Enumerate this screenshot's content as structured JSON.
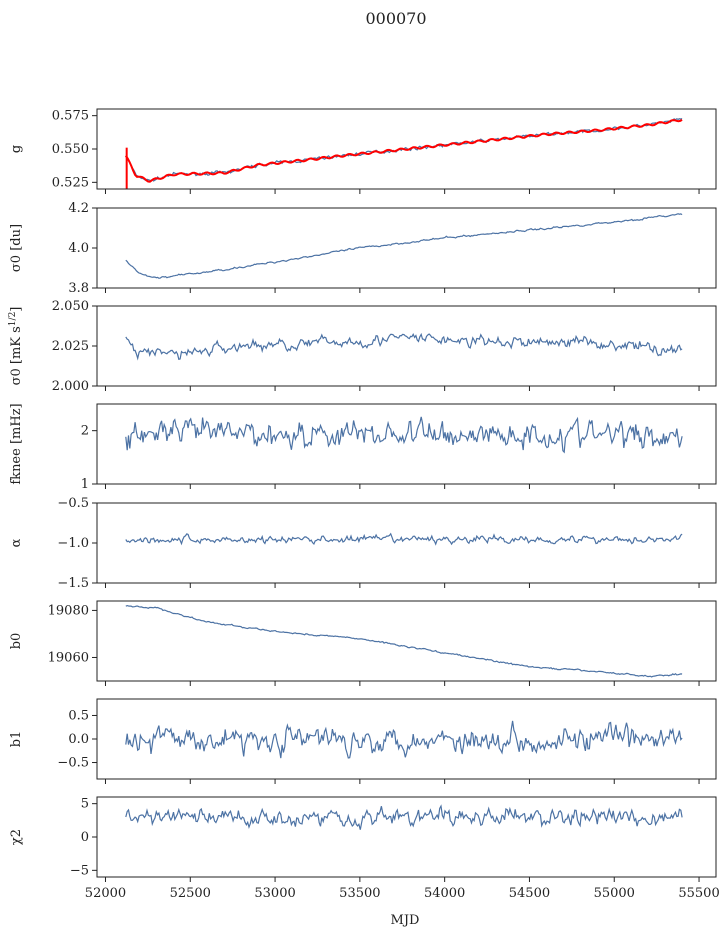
{
  "figure": {
    "title": "000070",
    "xlabel": "MJD"
  },
  "chart_data": {
    "type": "line",
    "xlim": [
      51950,
      55600
    ],
    "xticks": [
      52000,
      52500,
      53000,
      53500,
      54000,
      54500,
      55000,
      55500
    ],
    "x_start": 52120,
    "x_end": 55400,
    "series_color": "#4c72a4",
    "fit_color": "#ff0000",
    "panels": [
      {
        "name": "g",
        "ylabel": "g",
        "ylim": [
          0.52,
          0.58
        ],
        "yticks": [
          0.525,
          0.55,
          0.575
        ],
        "ytick_labels": [
          "0.525",
          "0.550",
          "0.575"
        ],
        "trend": [
          [
            52120,
            0.545
          ],
          [
            52180,
            0.53
          ],
          [
            52260,
            0.526
          ],
          [
            52400,
            0.531
          ],
          [
            52700,
            0.532
          ],
          [
            52900,
            0.538
          ],
          [
            53200,
            0.542
          ],
          [
            53400,
            0.545
          ],
          [
            53700,
            0.549
          ],
          [
            54000,
            0.553
          ],
          [
            54300,
            0.557
          ],
          [
            54600,
            0.561
          ],
          [
            54900,
            0.564
          ],
          [
            55200,
            0.568
          ],
          [
            55400,
            0.572
          ]
        ],
        "noise": 0.001,
        "overlay_fit": true
      },
      {
        "name": "sigma0-du",
        "ylabel": "σ0 [du]",
        "ylim": [
          3.8,
          4.2
        ],
        "yticks": [
          3.8,
          4.0,
          4.2
        ],
        "ytick_labels": [
          "3.8",
          "4.0",
          "4.2"
        ],
        "trend": [
          [
            52120,
            3.94
          ],
          [
            52200,
            3.87
          ],
          [
            52300,
            3.85
          ],
          [
            52600,
            3.88
          ],
          [
            53000,
            3.93
          ],
          [
            53500,
            4.0
          ],
          [
            54000,
            4.05
          ],
          [
            54500,
            4.09
          ],
          [
            55000,
            4.13
          ],
          [
            55400,
            4.17
          ]
        ],
        "noise": 0.004
      },
      {
        "name": "sigma0-mks",
        "ylabel": "σ0 [mK s^1/2]",
        "ylim": [
          2.0,
          2.05
        ],
        "yticks": [
          2.0,
          2.025,
          2.05
        ],
        "ytick_labels": [
          "2.000",
          "2.025",
          "2.050"
        ],
        "trend": [
          [
            52120,
            2.028
          ],
          [
            52200,
            2.02
          ],
          [
            52500,
            2.021
          ],
          [
            52800,
            2.025
          ],
          [
            53300,
            2.027
          ],
          [
            53800,
            2.03
          ],
          [
            54300,
            2.027
          ],
          [
            54800,
            2.028
          ],
          [
            55400,
            2.022
          ]
        ],
        "noise": 0.003
      },
      {
        "name": "fknee",
        "ylabel": "fknee [mHz]",
        "ylim": [
          1.0,
          2.5
        ],
        "yticks": [
          1,
          2
        ],
        "ytick_labels": [
          "1",
          "2"
        ],
        "trend": [
          [
            52120,
            1.95
          ],
          [
            55400,
            1.92
          ]
        ],
        "noise": 0.22
      },
      {
        "name": "alpha",
        "ylabel": "α",
        "ylim": [
          -1.5,
          -0.5
        ],
        "yticks": [
          -1.5,
          -1.0,
          -0.5
        ],
        "ytick_labels": [
          "−1.5",
          "−1.0",
          "−0.5"
        ],
        "trend": [
          [
            52120,
            -0.96
          ],
          [
            55400,
            -0.95
          ]
        ],
        "noise": 0.04
      },
      {
        "name": "b0",
        "ylabel": "b0",
        "ylim": [
          19050,
          19084
        ],
        "yticks": [
          19060,
          19080
        ],
        "ytick_labels": [
          "19060",
          "19080"
        ],
        "trend": [
          [
            52120,
            19082
          ],
          [
            52300,
            19081
          ],
          [
            52600,
            19075
          ],
          [
            53000,
            19071
          ],
          [
            53500,
            19068
          ],
          [
            54000,
            19062
          ],
          [
            54500,
            19056
          ],
          [
            54900,
            19054
          ],
          [
            55200,
            19052
          ],
          [
            55400,
            19053
          ]
        ],
        "noise": 0.3
      },
      {
        "name": "b1",
        "ylabel": "b1",
        "ylim": [
          -0.85,
          0.85
        ],
        "yticks": [
          -0.5,
          0.0,
          0.5
        ],
        "ytick_labels": [
          "−0.5",
          "0.0",
          "0.5"
        ],
        "trend": [
          [
            52120,
            0.0
          ],
          [
            55400,
            0.0
          ]
        ],
        "noise": 0.22
      },
      {
        "name": "chi2",
        "ylabel": "χ2",
        "ylim": [
          -6,
          6
        ],
        "yticks": [
          -5,
          0,
          5
        ],
        "ytick_labels": [
          "−5",
          "0",
          "5"
        ],
        "trend": [
          [
            52120,
            3.0
          ],
          [
            55400,
            3.0
          ]
        ],
        "noise": 1.1
      }
    ]
  }
}
